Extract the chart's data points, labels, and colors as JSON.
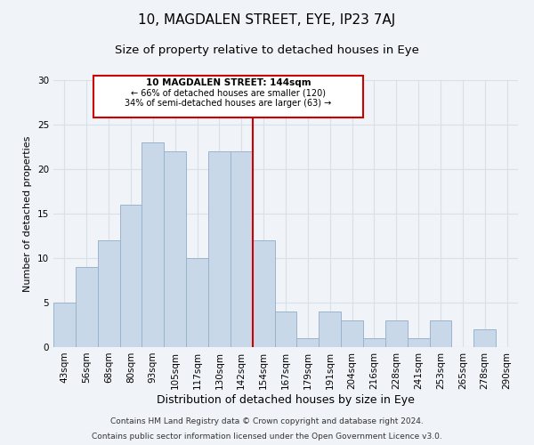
{
  "title": "10, MAGDALEN STREET, EYE, IP23 7AJ",
  "subtitle": "Size of property relative to detached houses in Eye",
  "xlabel": "Distribution of detached houses by size in Eye",
  "ylabel": "Number of detached properties",
  "bar_color": "#c8d8e8",
  "bar_edge_color": "#9ab4cc",
  "categories": [
    "43sqm",
    "56sqm",
    "68sqm",
    "80sqm",
    "93sqm",
    "105sqm",
    "117sqm",
    "130sqm",
    "142sqm",
    "154sqm",
    "167sqm",
    "179sqm",
    "191sqm",
    "204sqm",
    "216sqm",
    "228sqm",
    "241sqm",
    "253sqm",
    "265sqm",
    "278sqm",
    "290sqm"
  ],
  "values": [
    5,
    9,
    12,
    16,
    23,
    22,
    10,
    22,
    22,
    12,
    4,
    1,
    4,
    3,
    1,
    3,
    1,
    3,
    0,
    2,
    0
  ],
  "ylim": [
    0,
    30
  ],
  "yticks": [
    0,
    5,
    10,
    15,
    20,
    25,
    30
  ],
  "vline_x": 8.5,
  "vline_color": "#cc0000",
  "annotation_title": "10 MAGDALEN STREET: 144sqm",
  "annotation_line1": "← 66% of detached houses are smaller (120)",
  "annotation_line2": "34% of semi-detached houses are larger (63) →",
  "annotation_box_color": "#ffffff",
  "annotation_box_edge": "#cc0000",
  "footer1": "Contains HM Land Registry data © Crown copyright and database right 2024.",
  "footer2": "Contains public sector information licensed under the Open Government Licence v3.0.",
  "background_color": "#f0f4f8",
  "grid_color": "#d8e0e8",
  "title_fontsize": 11,
  "subtitle_fontsize": 9.5,
  "xlabel_fontsize": 9,
  "ylabel_fontsize": 8,
  "tick_fontsize": 7.5,
  "footer_fontsize": 6.5
}
